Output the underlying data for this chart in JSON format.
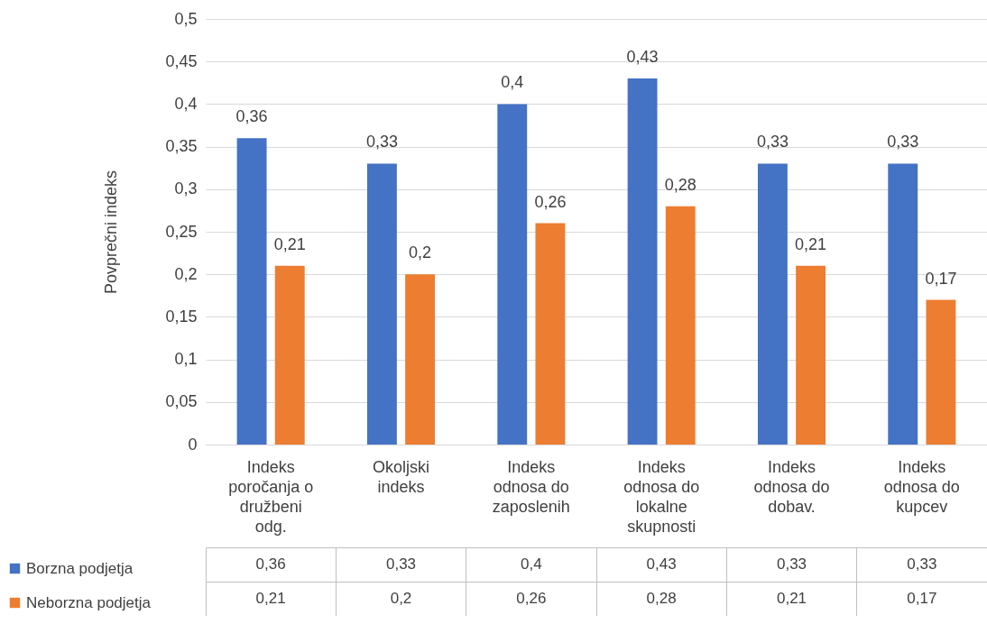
{
  "chart_data": {
    "type": "bar",
    "ylabel": "Povprečni indeks",
    "categories": [
      "Indeks poročanja o družbeni odg.",
      "Okoljski indeks",
      "Indeks odnosa do zaposlenih",
      "Indeks odnosa do lokalne skupnosti",
      "Indeks odnosa do dobav.",
      "Indeks odnosa do kupcev"
    ],
    "series": [
      {
        "name": "Borzna podjetja",
        "color": "#4472c4",
        "values": [
          0.36,
          0.33,
          0.4,
          0.43,
          0.33,
          0.33
        ],
        "value_labels": [
          "0,36",
          "0,33",
          "0,4",
          "0,43",
          "0,33",
          "0,33"
        ]
      },
      {
        "name": "Neborzna podjetja",
        "color": "#ed7d31",
        "values": [
          0.21,
          0.2,
          0.26,
          0.28,
          0.21,
          0.17
        ],
        "value_labels": [
          "0,21",
          "0,2",
          "0,26",
          "0,28",
          "0,21",
          "0,17"
        ]
      }
    ],
    "ylim": [
      0,
      0.5
    ],
    "yticks": [
      {
        "value": 0,
        "label": "0"
      },
      {
        "value": 0.05,
        "label": "0,05"
      },
      {
        "value": 0.1,
        "label": "0,1"
      },
      {
        "value": 0.15,
        "label": "0,15"
      },
      {
        "value": 0.2,
        "label": "0,2"
      },
      {
        "value": 0.25,
        "label": "0,25"
      },
      {
        "value": 0.3,
        "label": "0,3"
      },
      {
        "value": 0.35,
        "label": "0,35"
      },
      {
        "value": 0.4,
        "label": "0,4"
      },
      {
        "value": 0.45,
        "label": "0,45"
      },
      {
        "value": 0.5,
        "label": "0,5"
      }
    ],
    "grid": "y",
    "legend": "bottom left"
  }
}
